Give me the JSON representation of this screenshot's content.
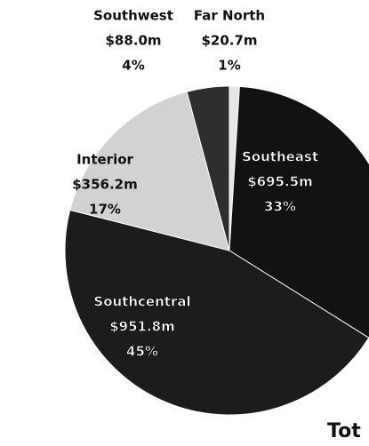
{
  "chart_data": {
    "type": "pie",
    "categories": [
      "Far North",
      "Southeast",
      "Southcentral",
      "Interior",
      "Southwest"
    ],
    "values": [
      20.7,
      695.5,
      951.8,
      356.2,
      88.0
    ],
    "value_labels": [
      "$20.7m",
      "$695.5m",
      "$951.8m",
      "$356.2m",
      "$88.0m"
    ],
    "percents": [
      1,
      33,
      45,
      17,
      4
    ],
    "percent_labels": [
      "1%",
      "33%",
      "45%",
      "17%",
      "4%"
    ],
    "colors": [
      "#e6e6e6",
      "#121212",
      "#1c1c1c",
      "#d2d2d2",
      "#2e2e2e"
    ],
    "annotation": "Tot"
  }
}
